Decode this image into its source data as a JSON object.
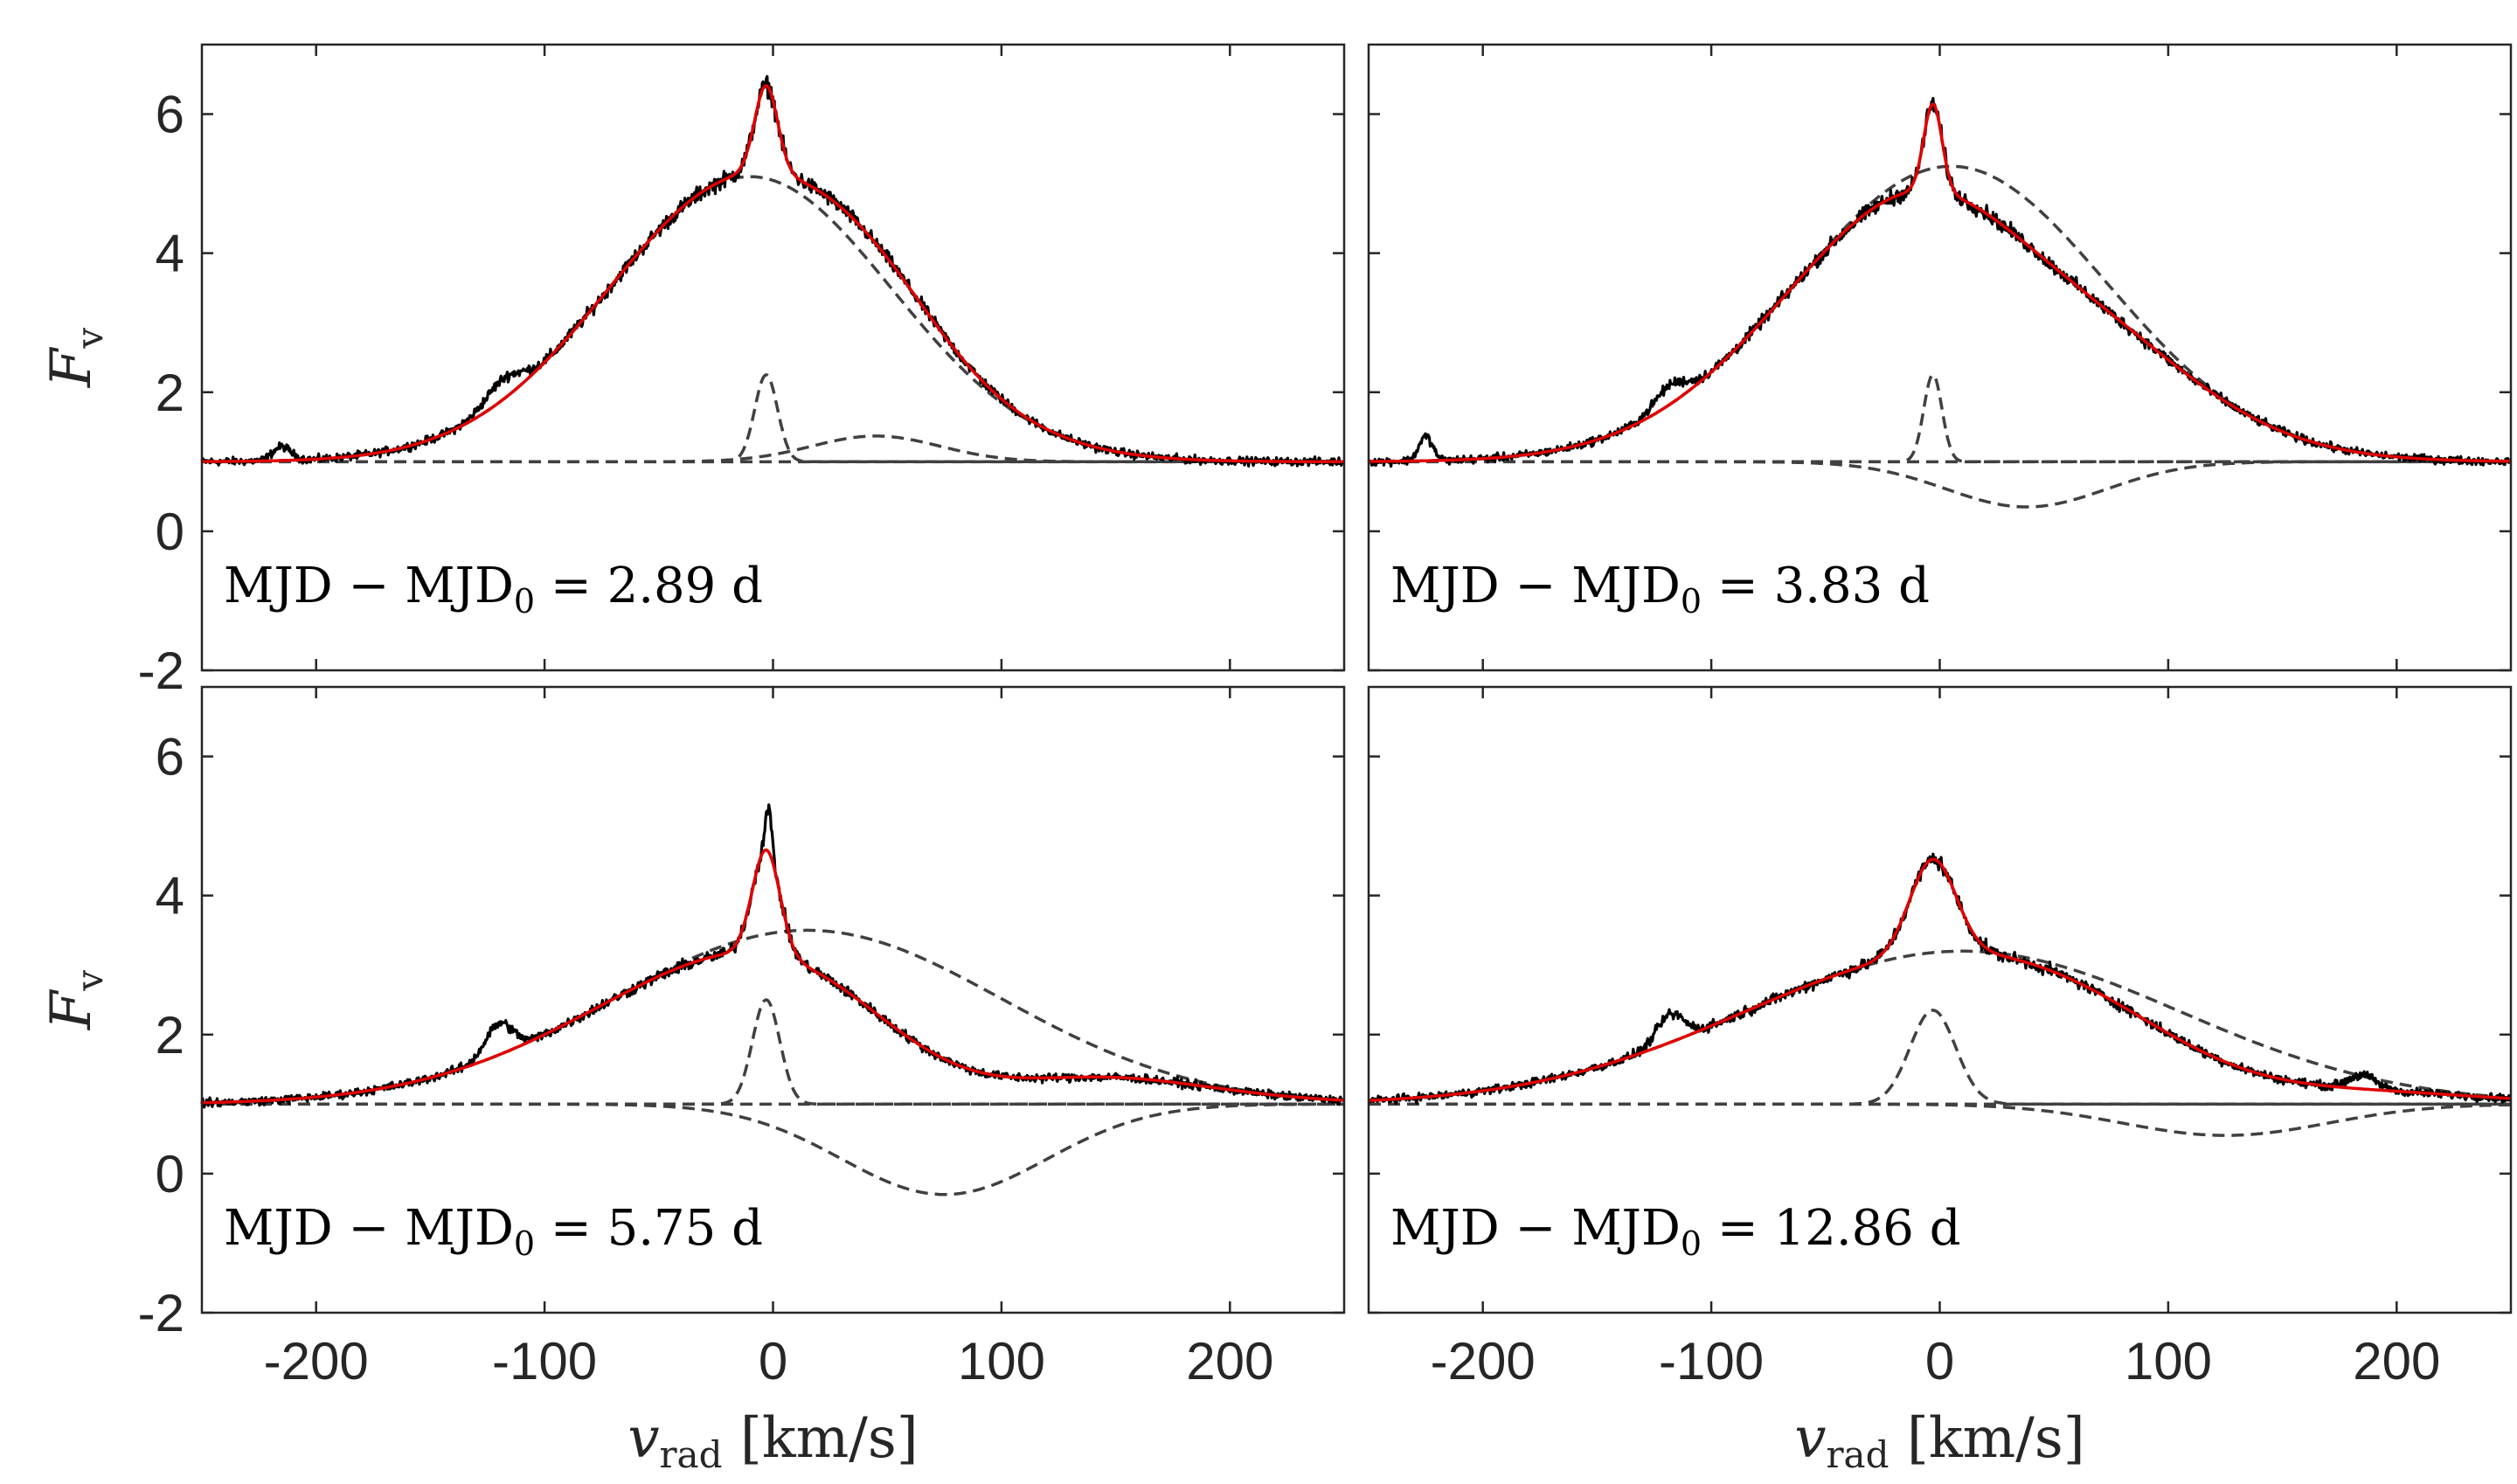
{
  "chart_data": {
    "type": "line",
    "layout": "2x2 grid",
    "shared_xlabel": {
      "symbol": "v",
      "subscript": "rad",
      "unit": "[km/s]"
    },
    "shared_ylabel": {
      "symbol": "F",
      "subscript": "v"
    },
    "xlim": [
      -250,
      250
    ],
    "ylim": [
      -2,
      7
    ],
    "xticks": [
      -200,
      -100,
      0,
      100,
      200
    ],
    "yticks": [
      -2,
      0,
      2,
      4,
      6
    ],
    "panels": [
      {
        "annotation": {
          "prefix": "MJD − MJD",
          "sub": "0",
          "suffix": " = 2.89 d"
        },
        "baseline": 1.0,
        "series": [
          {
            "name": "observed",
            "color": "#000000",
            "style": "solid-noisy"
          },
          {
            "name": "total fit",
            "color": "#e00000",
            "style": "solid"
          },
          {
            "name": "broad component",
            "style": "dashed",
            "center": -10,
            "peak": 5.1,
            "sigma": 62
          },
          {
            "name": "narrow component",
            "style": "dashed",
            "center": -3,
            "peak": 2.25,
            "sigma": 5
          },
          {
            "name": "secondary component",
            "style": "dashed",
            "center": 45,
            "peak": 1.37,
            "sigma": 28
          }
        ],
        "features": [
          {
            "center": -118,
            "amp": 0.3,
            "sigma": 8
          },
          {
            "center": -215,
            "amp": 0.2,
            "sigma": 4
          }
        ]
      },
      {
        "annotation": {
          "prefix": "MJD − MJD",
          "sub": "0",
          "suffix": " = 3.83 d"
        },
        "baseline": 1.0,
        "series": [
          {
            "name": "observed",
            "color": "#000000",
            "style": "solid-noisy"
          },
          {
            "name": "total fit",
            "color": "#e00000",
            "style": "solid"
          },
          {
            "name": "broad component",
            "style": "dashed",
            "center": 5,
            "peak": 5.25,
            "sigma": 68
          },
          {
            "name": "narrow component",
            "style": "dashed",
            "center": -3,
            "peak": 2.25,
            "sigma": 4
          },
          {
            "name": "absorption component",
            "style": "dashed",
            "center": 38,
            "peak": 0.35,
            "sigma": 35
          }
        ],
        "features": [
          {
            "center": -118,
            "amp": 0.28,
            "sigma": 7
          },
          {
            "center": -225,
            "amp": 0.35,
            "sigma": 3
          }
        ]
      },
      {
        "annotation": {
          "prefix": "MJD − MJD",
          "sub": "0",
          "suffix": " = 5.75 d"
        },
        "baseline": 1.0,
        "series": [
          {
            "name": "observed",
            "color": "#000000",
            "style": "solid-noisy"
          },
          {
            "name": "total fit",
            "color": "#e00000",
            "style": "solid"
          },
          {
            "name": "broad component",
            "style": "dashed",
            "center": 15,
            "peak": 3.5,
            "sigma": 85
          },
          {
            "name": "narrow component",
            "style": "dashed",
            "center": -3,
            "peak": 2.5,
            "sigma": 6
          },
          {
            "name": "absorption component",
            "style": "dashed",
            "center": 75,
            "peak": -0.3,
            "sigma": 45
          }
        ],
        "features": [
          {
            "center": -120,
            "amp": 0.45,
            "sigma": 6
          },
          {
            "center": -2,
            "amp": 0.6,
            "sigma": 1.5
          }
        ]
      },
      {
        "annotation": {
          "prefix": "MJD − MJD",
          "sub": "0",
          "suffix": " = 12.86 d"
        },
        "baseline": 1.0,
        "series": [
          {
            "name": "observed",
            "color": "#000000",
            "style": "solid-noisy"
          },
          {
            "name": "total fit",
            "color": "#e00000",
            "style": "solid"
          },
          {
            "name": "broad component",
            "style": "dashed",
            "center": 10,
            "peak": 3.2,
            "sigma": 95
          },
          {
            "name": "narrow component",
            "style": "dashed",
            "center": -3,
            "peak": 2.35,
            "sigma": 10
          },
          {
            "name": "absorption component",
            "style": "dashed",
            "center": 125,
            "peak": 0.55,
            "sigma": 45
          }
        ],
        "features": [
          {
            "center": -118,
            "amp": 0.4,
            "sigma": 6
          },
          {
            "center": 185,
            "amp": 0.2,
            "sigma": 6
          }
        ]
      }
    ]
  }
}
